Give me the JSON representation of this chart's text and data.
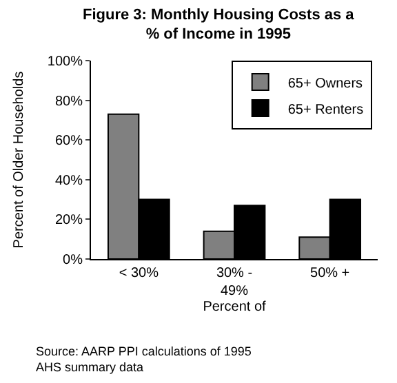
{
  "chart_data": {
    "type": "bar",
    "title": "Figure 3: Monthly Housing Costs as a\n% of Income in 1995",
    "categories": [
      "< 30%",
      "30% -\n49%",
      "50% +"
    ],
    "series": [
      {
        "name": "65+ Owners",
        "color": "#808080",
        "values": [
          73,
          14,
          11
        ]
      },
      {
        "name": "65+ Renters",
        "color": "#000000",
        "values": [
          30,
          27,
          30
        ]
      }
    ],
    "xlabel": "Percent of",
    "ylabel": "Percent of Older Households",
    "ylim": [
      0,
      100
    ],
    "yticks": [
      {
        "value": 0,
        "label": "0%"
      },
      {
        "value": 20,
        "label": "20%"
      },
      {
        "value": 40,
        "label": "40%"
      },
      {
        "value": 60,
        "label": "60%"
      },
      {
        "value": 80,
        "label": "80%"
      },
      {
        "value": 100,
        "label": "100%"
      }
    ],
    "legend": "top right",
    "annotations": [
      "Source: AARP PPI calculations of 1995\nAHS summary data"
    ]
  }
}
